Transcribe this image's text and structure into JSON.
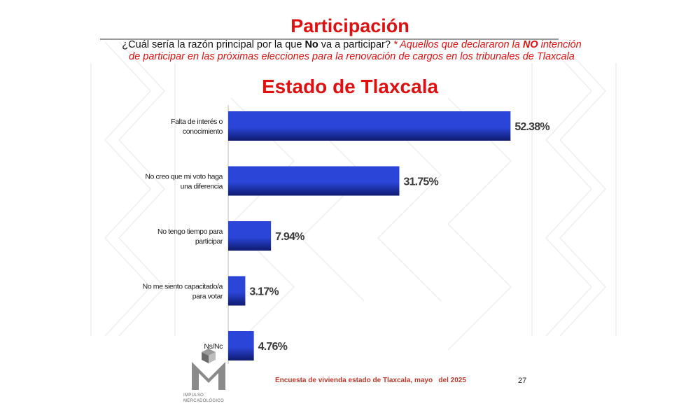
{
  "header": {
    "title": "Participación",
    "question_pre": "¿Cuál sería la razón principal por la que ",
    "question_bold": "No",
    "question_post": " va a participar? ",
    "note_pre": "* Aquellos que declararon la ",
    "note_bold": "NO",
    "note_post": " intención de participar en las próximas elecciones para la renovación de cargos en los tribunales de Tlaxcala",
    "subtitle": "Estado de Tlaxcala"
  },
  "chart_data": {
    "type": "bar",
    "orientation": "horizontal",
    "categories": [
      [
        "Falta de interés o",
        "conocimiento"
      ],
      [
        "No creo que mi voto haga",
        "una diferencia"
      ],
      [
        "No tengo tiempo para",
        "participar"
      ],
      [
        "No me siento capacitado/a",
        "para votar"
      ],
      [
        "Ns/Nc"
      ]
    ],
    "values": [
      52.38,
      31.75,
      7.94,
      3.17,
      4.76
    ],
    "value_labels": [
      "52.38%",
      "31.75%",
      "7.94%",
      "3.17%",
      "4.76%"
    ],
    "bar_color_light": "#2a45d8",
    "bar_color_dark": "#0e1a6e",
    "grid": false,
    "legend": "none"
  },
  "footer": {
    "source": "Encuesta de vivienda estado de Tlaxcala, mayo   del 2025",
    "page": "27"
  },
  "logo": {
    "line1": "IMPULSO",
    "line2": "MERCADOLÓGICO"
  }
}
